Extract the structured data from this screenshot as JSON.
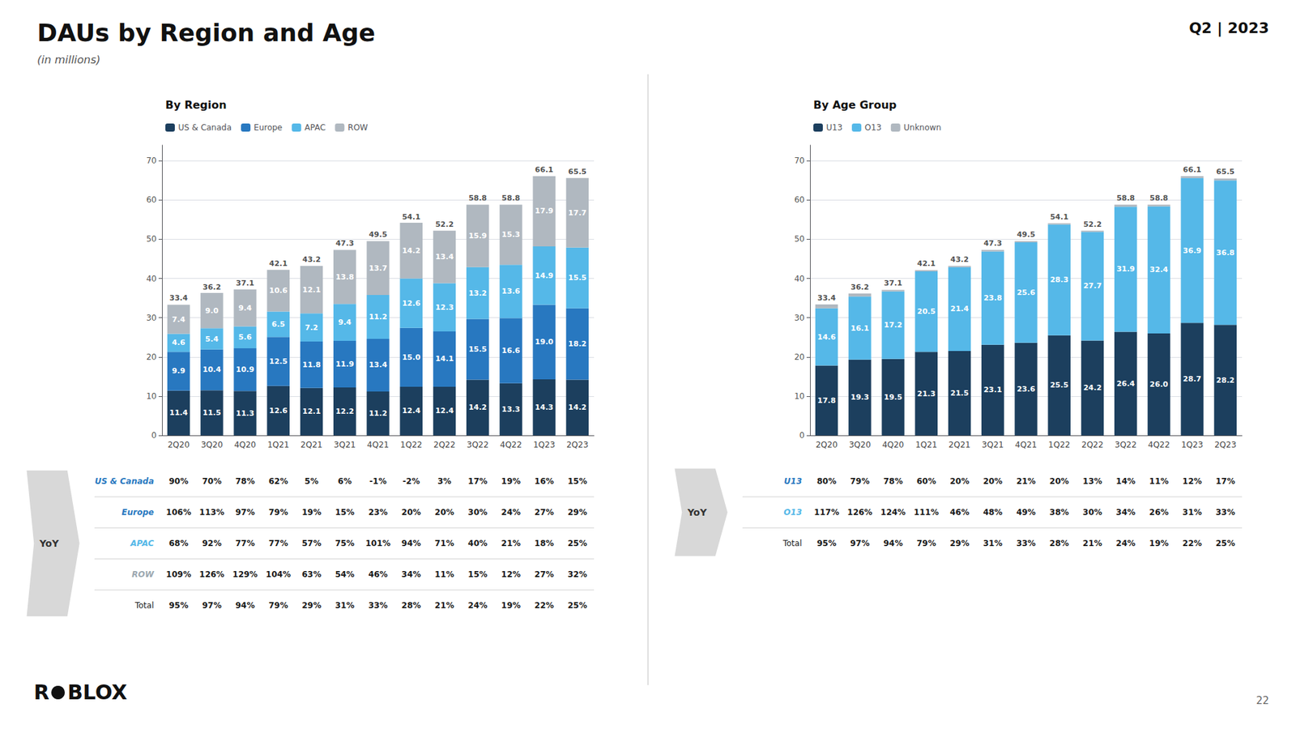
{
  "title": "DAUs by Region and Age",
  "subtitle": "(in millions)",
  "header": "Q2 | 2023",
  "page_number": "22",
  "logo": [
    "R",
    "BLOX"
  ],
  "chart_data": [
    {
      "type": "bar",
      "title": "By Region",
      "stacked": true,
      "data_labels": true,
      "grid": true,
      "legend": "top left",
      "categories": [
        "2Q20",
        "3Q20",
        "4Q20",
        "1Q21",
        "2Q21",
        "3Q21",
        "4Q21",
        "1Q22",
        "2Q22",
        "3Q22",
        "4Q22",
        "1Q23",
        "2Q23"
      ],
      "series": [
        {
          "name": "US & Canada",
          "color": "#1c3f5e",
          "values": [
            11.4,
            11.5,
            11.3,
            12.6,
            12.1,
            12.2,
            11.2,
            12.4,
            12.4,
            14.2,
            13.3,
            14.3,
            14.2
          ]
        },
        {
          "name": "Europe",
          "color": "#2878c0",
          "values": [
            9.9,
            10.4,
            10.9,
            12.5,
            11.8,
            11.9,
            13.4,
            15.0,
            14.1,
            15.5,
            16.6,
            19.0,
            18.2
          ],
          "value_labels": [
            "9.9",
            "10.4",
            "10.9",
            "12.5",
            "11.8",
            "11.9",
            "13.4",
            "15.0",
            "14.1",
            "15.5",
            "16.6",
            "19.0",
            "18.2"
          ]
        },
        {
          "name": "APAC",
          "color": "#55b8e8",
          "values": [
            4.6,
            5.4,
            5.6,
            6.5,
            7.2,
            9.4,
            11.2,
            12.6,
            12.3,
            13.2,
            13.6,
            14.9,
            15.5
          ]
        },
        {
          "name": "ROW",
          "color": "#b0b8c0",
          "values": [
            7.4,
            9.0,
            9.4,
            10.6,
            12.1,
            13.8,
            13.7,
            14.2,
            13.4,
            15.9,
            15.3,
            17.9,
            17.7
          ],
          "value_labels": [
            "7.4",
            "9.0",
            "9.4",
            "10.6",
            "12.1",
            "13.8",
            "13.7",
            "14.2",
            "13.4",
            "15.9",
            "15.3",
            "17.9",
            "17.7"
          ]
        }
      ],
      "totals": [
        33.4,
        36.2,
        37.1,
        42.1,
        43.2,
        47.3,
        49.5,
        54.1,
        52.2,
        58.8,
        58.8,
        66.1,
        65.5
      ],
      "ylim": [
        0,
        74
      ],
      "yticks": [
        0,
        10,
        20,
        30,
        40,
        50,
        60,
        70
      ],
      "yoy_table": {
        "label": "YoY",
        "rows": [
          {
            "name": "US & Canada",
            "color": "#2878c0",
            "labels": [
              "90%",
              "70%",
              "78%",
              "62%",
              "5%",
              "6%",
              "-1%",
              "-2%",
              "3%",
              "17%",
              "19%",
              "16%",
              "15%"
            ]
          },
          {
            "name": "Europe",
            "color": "#2878c0",
            "labels": [
              "106%",
              "113%",
              "97%",
              "79%",
              "19%",
              "15%",
              "23%",
              "20%",
              "20%",
              "30%",
              "24%",
              "27%",
              "29%"
            ]
          },
          {
            "name": "APAC",
            "color": "#55b8e8",
            "labels": [
              "68%",
              "92%",
              "77%",
              "77%",
              "57%",
              "75%",
              "101%",
              "94%",
              "71%",
              "40%",
              "21%",
              "18%",
              "25%"
            ]
          },
          {
            "name": "ROW",
            "color": "#9ca8b0",
            "labels": [
              "109%",
              "126%",
              "129%",
              "104%",
              "63%",
              "54%",
              "46%",
              "34%",
              "11%",
              "15%",
              "12%",
              "27%",
              "32%"
            ]
          },
          {
            "name": "Total",
            "color": "#222222",
            "labels": [
              "95%",
              "97%",
              "94%",
              "79%",
              "29%",
              "31%",
              "33%",
              "28%",
              "21%",
              "24%",
              "19%",
              "22%",
              "25%"
            ]
          }
        ]
      }
    },
    {
      "type": "bar",
      "title": "By Age Group",
      "stacked": true,
      "data_labels": true,
      "grid": true,
      "legend": "top left",
      "categories": [
        "2Q20",
        "3Q20",
        "4Q20",
        "1Q21",
        "2Q21",
        "3Q21",
        "4Q21",
        "1Q22",
        "2Q22",
        "3Q22",
        "4Q22",
        "1Q23",
        "2Q23"
      ],
      "series": [
        {
          "name": "U13",
          "color": "#1c3f5e",
          "values": [
            17.8,
            19.3,
            19.5,
            21.3,
            21.5,
            23.1,
            23.6,
            25.5,
            24.2,
            26.4,
            26.0,
            28.7,
            28.2
          ],
          "value_labels": [
            "17.8",
            "19.3",
            "19.5",
            "21.3",
            "21.5",
            "23.1",
            "23.6",
            "25.5",
            "24.2",
            "26.4",
            "26.0",
            "28.7",
            "28.2"
          ]
        },
        {
          "name": "O13",
          "color": "#55b8e8",
          "values": [
            14.6,
            16.1,
            17.2,
            20.5,
            21.4,
            23.8,
            25.6,
            28.3,
            27.7,
            31.9,
            32.4,
            36.9,
            36.8
          ]
        },
        {
          "name": "Unknown",
          "color": "#b0b8c0",
          "data_labels": false,
          "values": [
            1.0,
            0.8,
            0.4,
            0.3,
            0.3,
            0.4,
            0.3,
            0.3,
            0.3,
            0.5,
            0.4,
            0.5,
            0.5
          ]
        }
      ],
      "totals": [
        33.4,
        36.2,
        37.1,
        42.1,
        43.2,
        47.3,
        49.5,
        54.1,
        52.2,
        58.8,
        58.8,
        66.1,
        65.5
      ],
      "ylim": [
        0,
        74
      ],
      "yticks": [
        0,
        10,
        20,
        30,
        40,
        50,
        60,
        70
      ],
      "yoy_table": {
        "label": "YoY",
        "rows": [
          {
            "name": "U13",
            "color": "#2878c0",
            "labels": [
              "80%",
              "79%",
              "78%",
              "60%",
              "20%",
              "20%",
              "21%",
              "20%",
              "13%",
              "14%",
              "11%",
              "12%",
              "17%"
            ]
          },
          {
            "name": "O13",
            "color": "#55b8e8",
            "labels": [
              "117%",
              "126%",
              "124%",
              "111%",
              "46%",
              "48%",
              "49%",
              "38%",
              "30%",
              "34%",
              "26%",
              "31%",
              "33%"
            ]
          },
          {
            "name": "Total",
            "color": "#222222",
            "labels": [
              "95%",
              "97%",
              "94%",
              "79%",
              "29%",
              "31%",
              "33%",
              "28%",
              "21%",
              "24%",
              "19%",
              "22%",
              "25%"
            ]
          }
        ]
      }
    }
  ]
}
